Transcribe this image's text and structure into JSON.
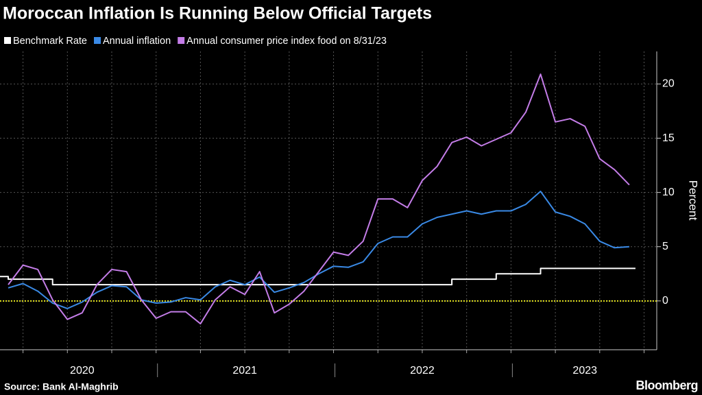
{
  "chart_data": {
    "type": "line",
    "title": "Moroccan Inflation Is Running Below Official Targets",
    "y_label": "Percent",
    "source": "Source: Bank Al-Maghrib",
    "brand": "Bloomberg",
    "categories": [
      null,
      null,
      null,
      null,
      null,
      "2020",
      null,
      null,
      null,
      null,
      null,
      null,
      null,
      null,
      null,
      null,
      "2021",
      null,
      null,
      null,
      null,
      null,
      null,
      null,
      null,
      null,
      null,
      null,
      "2022",
      null,
      null,
      null,
      null,
      null,
      null,
      null,
      null,
      null,
      null,
      "2023",
      null,
      null,
      null
    ],
    "series": [
      {
        "name": "Benchmark Rate",
        "color": "#ffffff",
        "step": true,
        "values": [
          2.25,
          2.0,
          2.0,
          2.0,
          1.5,
          1.5,
          1.5,
          1.5,
          1.5,
          1.5,
          1.5,
          1.5,
          1.5,
          1.5,
          1.5,
          1.5,
          1.5,
          1.5,
          1.5,
          1.5,
          1.5,
          1.5,
          1.5,
          1.5,
          1.5,
          1.5,
          1.5,
          1.5,
          1.5,
          1.5,
          1.5,
          2.0,
          2.0,
          2.0,
          2.5,
          2.5,
          2.5,
          3.0,
          3.0,
          3.0,
          3.0,
          3.0,
          3.0
        ]
      },
      {
        "name": "Annual inflation",
        "color": "#3a8ae6",
        "values": [
          1.2,
          1.6,
          0.9,
          -0.2,
          -0.7,
          -0.1,
          0.8,
          1.4,
          1.3,
          0.1,
          -0.2,
          -0.1,
          0.3,
          0.1,
          1.3,
          1.9,
          1.5,
          2.2,
          0.8,
          1.2,
          1.7,
          2.5,
          3.2,
          3.1,
          3.6,
          5.3,
          5.9,
          5.9,
          7.1,
          7.7,
          8.0,
          8.3,
          8.0,
          8.3,
          8.3,
          8.9,
          10.1,
          8.2,
          7.8,
          7.1,
          5.5,
          4.9,
          5.0
        ]
      },
      {
        "name": "Annual consumer price index food on 8/31/23",
        "color": "#c47de8",
        "values": [
          1.5,
          3.3,
          2.9,
          0.1,
          -1.7,
          -1.1,
          1.5,
          2.9,
          2.7,
          0.1,
          -1.6,
          -1.0,
          -1.0,
          -2.1,
          0.1,
          1.3,
          0.6,
          2.7,
          -1.1,
          -0.3,
          0.9,
          2.7,
          4.5,
          4.2,
          5.5,
          9.4,
          9.4,
          8.6,
          11.1,
          12.4,
          14.6,
          15.1,
          14.3,
          14.9,
          15.5,
          17.4,
          20.9,
          16.5,
          16.8,
          16.1,
          13.1,
          12.1,
          10.7
        ]
      }
    ],
    "reference_line": {
      "value": 0,
      "color": "#e6e61e"
    },
    "ylim": [
      -4.5,
      23
    ],
    "yticks": [
      0,
      5,
      10,
      15,
      20
    ],
    "grid": true,
    "y_axis_side": "right"
  }
}
